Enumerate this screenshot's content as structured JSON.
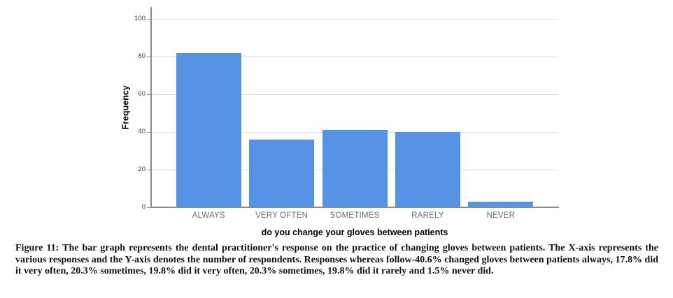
{
  "figure": {
    "caption_label": "Figure 11:",
    "caption_text": "The bar graph represents the dental practitioner's response on the practice of changing gloves between patients. The X-axis represents the various responses and the Y-axis denotes the number of respondents. Responses whereas follow-40.6% changed gloves between patients always, 17.8% did it very often, 20.3% sometimes, 19.8% did it very often, 20.3% sometimes, 19.8% did it rarely and 1.5% never did."
  },
  "chart_data": {
    "type": "bar",
    "categories": [
      "ALWAYS",
      "VERY OFTEN",
      "SOMETIMES",
      "RARELY",
      "NEVER"
    ],
    "values": [
      82,
      36,
      41,
      40,
      3
    ],
    "title": "",
    "xlabel": "do you change your gloves between patients",
    "ylabel": "Frequency",
    "ylim": [
      0,
      100
    ],
    "yticks": [
      0,
      20,
      40,
      60,
      80,
      100
    ],
    "bar_color": "#5793e4",
    "gridline_color": "#dcdcdc",
    "axis_color": "#8c8c8c",
    "legend": "none",
    "grid": "horizontal"
  }
}
